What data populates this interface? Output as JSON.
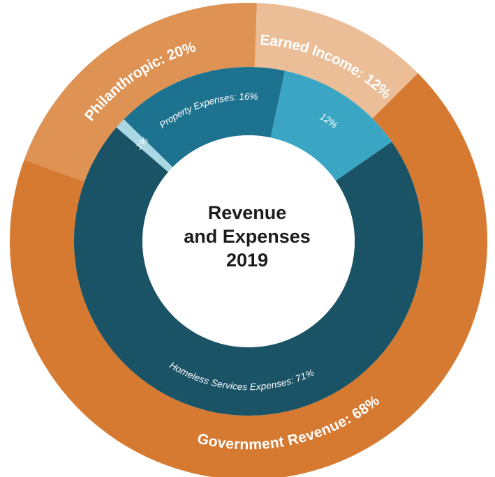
{
  "chart_data": {
    "type": "pie",
    "title_lines": [
      "Revenue",
      "and Expenses",
      "2019"
    ],
    "rings": [
      {
        "name": "",
        "slices": [
          {
            "value": 12,
            "label": "Earned Income: 12%",
            "color": "#ebbe98"
          },
          {
            "value": 68,
            "label": "Government Revenue: 68%",
            "color": "#d77a31"
          },
          {
            "value": 20,
            "label": "Philanthropic: 20%",
            "color": "#de9254"
          }
        ]
      },
      {
        "name": "",
        "slices": [
          {
            "value": 12,
            "label": "12%",
            "color": "#3aa6c4"
          },
          {
            "value": 71,
            "label": "Homeless Services Expenses: 71%",
            "color": "#1a5366"
          },
          {
            "value": 1,
            "label": "1%",
            "color": "#a9d7e4"
          },
          {
            "value": 16,
            "label": "Property Expenses: 16%",
            "color": "#1d7290"
          }
        ]
      }
    ]
  }
}
